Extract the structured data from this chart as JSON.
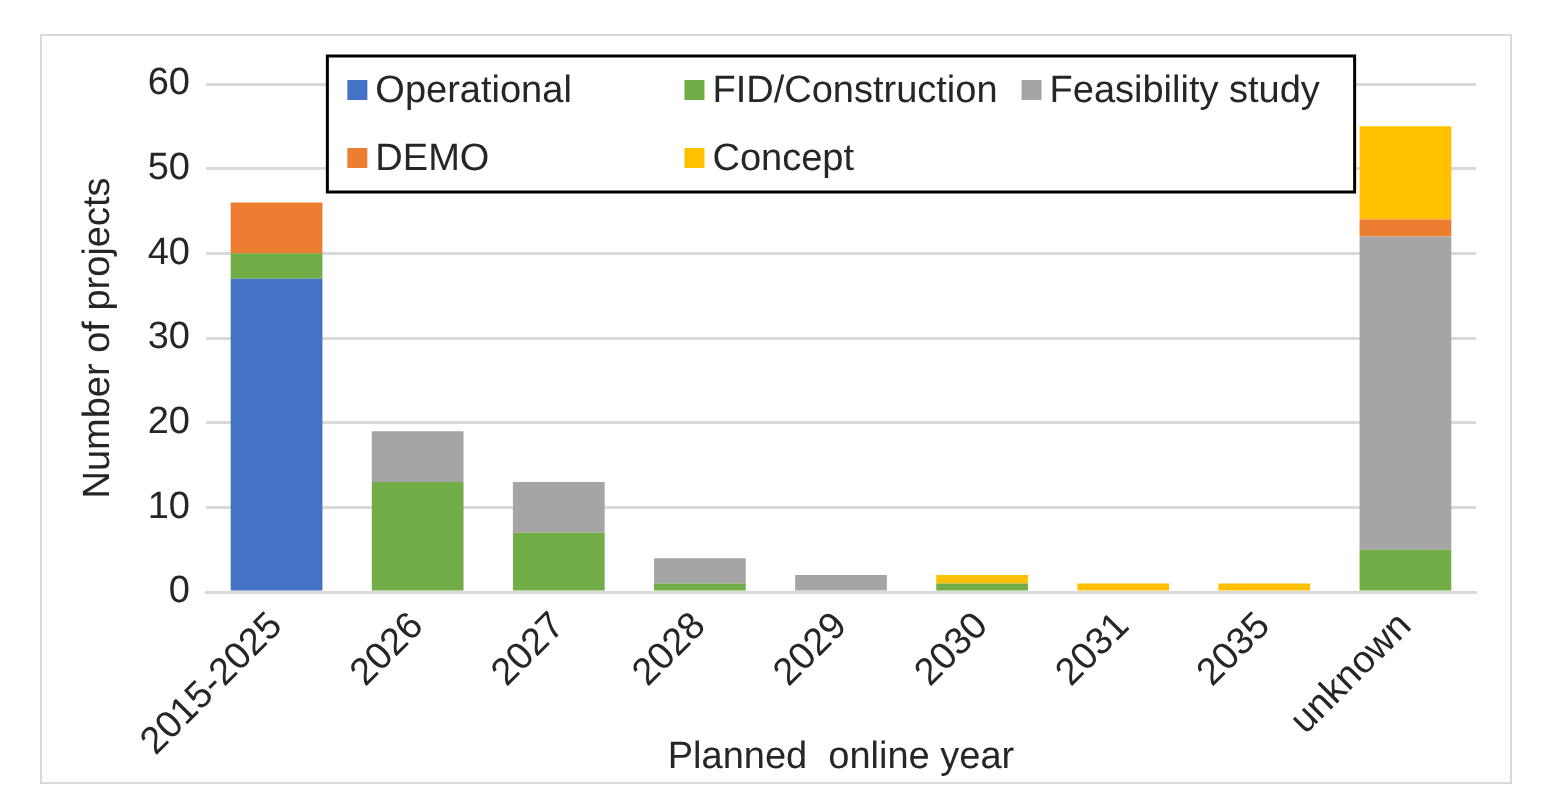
{
  "chart_data": {
    "type": "bar",
    "stacked": true,
    "xlabel": "Planned  online year",
    "ylabel": "Number of projects",
    "categories": [
      "2015-2025",
      "2026",
      "2027",
      "2028",
      "2029",
      "2030",
      "2031",
      "2035",
      "unknown"
    ],
    "series": [
      {
        "name": "Operational",
        "color": "#4472c4",
        "values": [
          37,
          0,
          0,
          0,
          0,
          0,
          0,
          0,
          0
        ]
      },
      {
        "name": "FID/Construction",
        "color": "#70ad47",
        "values": [
          3,
          13,
          7,
          1,
          0,
          1,
          0,
          0,
          5
        ]
      },
      {
        "name": "Feasibility study",
        "color": "#a5a5a5",
        "values": [
          0,
          6,
          6,
          3,
          2,
          0,
          0,
          0,
          37
        ]
      },
      {
        "name": "DEMO",
        "color": "#ed7d31",
        "values": [
          6,
          0,
          0,
          0,
          0,
          0,
          0,
          0,
          2
        ]
      },
      {
        "name": "Concept",
        "color": "#ffc000",
        "values": [
          0,
          0,
          0,
          0,
          0,
          1,
          1,
          1,
          11
        ]
      }
    ],
    "ylim": [
      0,
      60
    ],
    "yticks": [
      0,
      10,
      20,
      30,
      40,
      50,
      60
    ],
    "grid": "y",
    "legend": "top"
  }
}
